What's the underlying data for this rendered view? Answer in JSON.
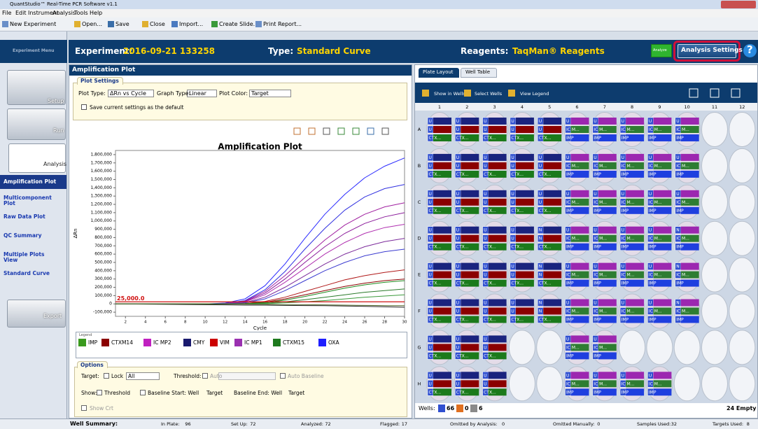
{
  "window": {
    "title": "QuantStudio™ Real-Time PCR Software v1.1"
  },
  "menu": [
    "File",
    "Edit",
    "Instrument",
    "Analysis",
    "Tools",
    "Help"
  ],
  "toolbar": [
    "New Experiment",
    "Open...",
    "Save",
    "Close",
    "Import...",
    "Create Slide...",
    "Print Report..."
  ],
  "nav": {
    "header": "Experiment Menu",
    "steps": [
      "Setup",
      "Run",
      "Analysis"
    ],
    "items": [
      "Amplification Plot",
      "Multicomponent Plot",
      "Raw Data Plot",
      "QC Summary",
      "Multiple Plots View",
      "Standard Curve"
    ],
    "export": "Export"
  },
  "header": {
    "experiment_label": "Experiment:",
    "experiment": "2016-09-21 133258",
    "type_label": "Type:",
    "type": "Standard Curve",
    "reagents_label": "Reagents:",
    "reagents": "TaqMan® Reagents",
    "analyze": "Analyze",
    "settings": "Analysis Settings",
    "help": "?"
  },
  "amp": {
    "panel_title": "Amplification Plot",
    "settings_title": "Plot Settings",
    "plot_type_label": "Plot Type:",
    "plot_type": "ΔRn vs Cycle",
    "graph_type_label": "Graph Type:",
    "graph_type": "Linear",
    "plot_color_label": "Plot Color:",
    "plot_color": "Target",
    "default_check": "Save current settings as the default"
  },
  "chart_data": {
    "type": "line",
    "title": "Amplification Plot",
    "x_label": "Cycle",
    "y_label": "ΔRn",
    "threshold": 25000,
    "threshold_label": "25,000.0",
    "threshold_color": "#d01010",
    "xlim": [
      1,
      30
    ],
    "ylim": [
      -150000,
      1850000
    ],
    "xticks": [
      2,
      4,
      6,
      8,
      10,
      12,
      14,
      16,
      18,
      20,
      22,
      24,
      26,
      28,
      30
    ],
    "yticks": [
      {
        "value": 1800000,
        "label": "1,800,000"
      },
      {
        "value": 1700000,
        "label": "1,700,000"
      },
      {
        "value": 1600000,
        "label": "1,600,000"
      },
      {
        "value": 1500000,
        "label": "1,500,000"
      },
      {
        "value": 1400000,
        "label": "1,400,000"
      },
      {
        "value": 1300000,
        "label": "1,300,000"
      },
      {
        "value": 1200000,
        "label": "1,200,000"
      },
      {
        "value": 1100000,
        "label": "1,100,000"
      },
      {
        "value": 1000000,
        "label": "1,000,000"
      },
      {
        "value": 900000,
        "label": "900,000"
      },
      {
        "value": 800000,
        "label": "800,000"
      },
      {
        "value": 700000,
        "label": "700,000"
      },
      {
        "value": 600000,
        "label": "600,000"
      },
      {
        "value": 500000,
        "label": "500,000"
      },
      {
        "value": 400000,
        "label": "400,000"
      },
      {
        "value": 300000,
        "label": "300,000"
      },
      {
        "value": 200000,
        "label": "200,000"
      },
      {
        "value": 100000,
        "label": "100,000"
      },
      0,
      {
        "value": -100000,
        "label": "-100,000"
      }
    ],
    "x": [
      1,
      10,
      12,
      14,
      16,
      18,
      20,
      22,
      24,
      26,
      28,
      30
    ],
    "series": [
      {
        "color": "#2a2aff",
        "values": [
          0,
          0,
          10000,
          60000,
          220000,
          480000,
          790000,
          1080000,
          1320000,
          1520000,
          1660000,
          1760000
        ]
      },
      {
        "color": "#3030e0",
        "values": [
          0,
          0,
          5000,
          40000,
          170000,
          390000,
          660000,
          910000,
          1130000,
          1290000,
          1390000,
          1440000
        ]
      },
      {
        "color": "#a020a0",
        "values": [
          0,
          0,
          4000,
          35000,
          150000,
          340000,
          560000,
          770000,
          950000,
          1080000,
          1170000,
          1220000
        ]
      },
      {
        "color": "#8a1a9a",
        "values": [
          0,
          0,
          3000,
          30000,
          130000,
          300000,
          500000,
          690000,
          850000,
          970000,
          1050000,
          1100000
        ]
      },
      {
        "color": "#b030b0",
        "values": [
          0,
          0,
          2000,
          25000,
          110000,
          260000,
          430000,
          600000,
          740000,
          850000,
          920000,
          960000
        ]
      },
      {
        "color": "#7b2a9b",
        "values": [
          0,
          0,
          1000,
          15000,
          80000,
          200000,
          340000,
          480000,
          600000,
          690000,
          750000,
          790000
        ]
      },
      {
        "color": "#3b3bd0",
        "values": [
          0,
          0,
          1000,
          12000,
          60000,
          160000,
          280000,
          400000,
          500000,
          580000,
          630000,
          660000
        ]
      },
      {
        "color": "#b01818",
        "values": [
          0,
          0,
          0,
          5000,
          30000,
          80000,
          150000,
          220000,
          290000,
          340000,
          380000,
          410000
        ]
      },
      {
        "color": "#8b0000",
        "values": [
          0,
          0,
          0,
          3000,
          20000,
          60000,
          110000,
          160000,
          210000,
          250000,
          280000,
          300000
        ]
      },
      {
        "color": "#1f8a1f",
        "values": [
          0,
          0,
          0,
          3000,
          15000,
          45000,
          90000,
          140000,
          190000,
          230000,
          260000,
          280000
        ]
      },
      {
        "color": "#2a7a2a",
        "values": [
          0,
          0,
          0,
          1000,
          8000,
          25000,
          50000,
          80000,
          110000,
          140000,
          160000,
          180000
        ]
      },
      {
        "color": "#3c9a3c",
        "values": [
          0,
          0,
          0,
          0,
          4000,
          12000,
          25000,
          40000,
          60000,
          80000,
          95000,
          110000
        ]
      },
      {
        "color": "#202020",
        "values": [
          0,
          -10000,
          -12000,
          -15000,
          -15000,
          -18000,
          -20000,
          -22000,
          -25000,
          -30000,
          -35000,
          -40000
        ]
      },
      {
        "color": "#556b2f",
        "values": [
          0,
          0,
          0,
          -3000,
          -5000,
          -8000,
          -10000,
          -12000,
          -15000,
          -18000,
          -20000,
          -22000
        ]
      }
    ]
  },
  "legend": {
    "title": "Legend",
    "items": [
      {
        "name": "IMP",
        "color": "#3a9a1e"
      },
      {
        "name": "CTXM14",
        "color": "#8b0000"
      },
      {
        "name": "IC MP2",
        "color": "#c020c0"
      },
      {
        "name": "CMY",
        "color": "#1a1a6e"
      },
      {
        "name": "VIM",
        "color": "#cc0000"
      },
      {
        "name": "IC MP1",
        "color": "#9a30b0"
      },
      {
        "name": "CTXM15",
        "color": "#1e7a1e"
      },
      {
        "name": "OXA",
        "color": "#1e1eff"
      }
    ]
  },
  "options": {
    "title": "Options",
    "target_label": "Target:",
    "lock": "Lock",
    "target": "All",
    "threshold_label": "Threshold:",
    "auto": "Auto",
    "auto_baseline": "Auto Baseline",
    "show_label": "Show:",
    "show_threshold": "Threshold",
    "baseline_start": "Baseline Start: Well",
    "start_target": "Target",
    "baseline_end": "Baseline End: Well",
    "end_target": "Target",
    "show_crt": "Show Crt"
  },
  "plate": {
    "tabs": [
      "Plate Layout",
      "Well Table"
    ],
    "tools": [
      "Show in Wells",
      "Select Wells",
      "View Legend"
    ],
    "columns": [
      1,
      2,
      3,
      4,
      5,
      6,
      7,
      8,
      9,
      10,
      11,
      12
    ],
    "rows": [
      "A",
      "B",
      "C",
      "D",
      "E",
      "F",
      "G",
      "H"
    ],
    "wells": [
      [
        [
          "U",
          "U",
          "CTX..."
        ],
        [
          "U",
          "U",
          "CTX..."
        ],
        [
          "U",
          "U",
          "CTX..."
        ],
        [
          "U",
          "U",
          "CTX..."
        ],
        [
          "U",
          "U",
          "CTX..."
        ],
        [
          "U",
          "IC M...",
          "IMP"
        ],
        [
          "U",
          "IC M...",
          "IMP"
        ],
        [
          "U",
          "IC M...",
          "IMP"
        ],
        [
          "U",
          "IC M...",
          "IMP"
        ],
        [
          "U",
          "IC M...",
          "IMP"
        ],
        [],
        []
      ],
      [
        [
          "U",
          "U",
          "CTX..."
        ],
        [
          "U",
          "U",
          "CTX..."
        ],
        [
          "U",
          "U",
          "CTX..."
        ],
        [
          "U",
          "U",
          "CTX..."
        ],
        [
          "U",
          "U",
          "CTX..."
        ],
        [
          "U",
          "IC M...",
          "IMP"
        ],
        [
          "U",
          "IC M...",
          "IMP"
        ],
        [
          "U",
          "IC M...",
          "IMP"
        ],
        [
          "U",
          "IC M...",
          "IMP"
        ],
        [
          "U",
          "IC M...",
          "IMP"
        ],
        [],
        []
      ],
      [
        [
          "U",
          "U",
          "CTX..."
        ],
        [
          "U",
          "U",
          "CTX..."
        ],
        [
          "U",
          "U",
          "CTX..."
        ],
        [
          "U",
          "U",
          "CTX..."
        ],
        [
          "U",
          "U",
          "CTX..."
        ],
        [
          "U",
          "IC M...",
          "IMP"
        ],
        [
          "U",
          "IC M...",
          "IMP"
        ],
        [
          "U",
          "IC M...",
          "IMP"
        ],
        [
          "U",
          "IC M...",
          "IMP"
        ],
        [
          "U",
          "IC M...",
          "IMP"
        ],
        [],
        []
      ],
      [
        [
          "U",
          "U",
          "CTX..."
        ],
        [
          "U",
          "U",
          "CTX..."
        ],
        [
          "U",
          "U",
          "CTX..."
        ],
        [
          "U",
          "U",
          "CTX..."
        ],
        [
          "N",
          "N",
          "CTX..."
        ],
        [
          "U",
          "IC M...",
          "IMP"
        ],
        [
          "U",
          "IC M...",
          "IMP"
        ],
        [
          "U",
          "IC M...",
          "IMP"
        ],
        [
          "U",
          "IC M...",
          "IMP"
        ],
        [
          "N",
          "IC M...",
          "IMP"
        ],
        [],
        []
      ],
      [
        [
          "U",
          "U",
          "CTX..."
        ],
        [
          "U",
          "U",
          "CTX..."
        ],
        [
          "U",
          "U",
          "CTX..."
        ],
        [
          "U",
          "U",
          "CTX..."
        ],
        [
          "N",
          "N",
          "CTX..."
        ],
        [
          "U",
          "IC M...",
          "IMP"
        ],
        [
          "U",
          "IC M...",
          "IMP"
        ],
        [
          "U",
          "IC M...",
          "IMP"
        ],
        [
          "U",
          "IC M...",
          "IMP"
        ],
        [
          "N",
          "IC M...",
          "IMP"
        ],
        [],
        []
      ],
      [
        [
          "U",
          "U",
          "CTX..."
        ],
        [
          "U",
          "U",
          "CTX..."
        ],
        [
          "U",
          "U",
          "CTX..."
        ],
        [
          "U",
          "U",
          "CTX..."
        ],
        [
          "N",
          "N",
          "CTX..."
        ],
        [
          "U",
          "IC M...",
          "IMP"
        ],
        [
          "U",
          "IC M...",
          "IMP"
        ],
        [
          "U",
          "IC M...",
          "IMP"
        ],
        [
          "U",
          "IC M...",
          "IMP"
        ],
        [
          "N",
          "IC M...",
          "IMP"
        ],
        [],
        []
      ],
      [
        [
          "U",
          "U",
          "CTX..."
        ],
        [
          "U",
          "U",
          "CTX..."
        ],
        [
          "U",
          "U",
          "CTX..."
        ],
        [],
        [],
        [
          "U",
          "IC M...",
          "IMP"
        ],
        [
          "U",
          "IC M...",
          "IMP"
        ],
        [],
        [],
        [],
        [],
        []
      ],
      [
        [
          "U",
          "U",
          "CTX..."
        ],
        [
          "U",
          "U",
          "CTX..."
        ],
        [
          "U",
          "U",
          "CTX..."
        ],
        [],
        [],
        [
          "U",
          "IC M...",
          "IMP"
        ],
        [
          "U",
          "IC M...",
          "IMP"
        ],
        [
          "U",
          "IC M...",
          "IMP"
        ],
        [
          "U",
          "IC M...",
          "IMP"
        ],
        [],
        [],
        []
      ]
    ],
    "footer": {
      "wells_label": "Wells:",
      "unknown": 66,
      "standard": 0,
      "ntc": 6,
      "empty": "24 Empty"
    }
  },
  "status": {
    "title": "Well Summary:",
    "items": [
      {
        "label": "In Plate:",
        "value": 96
      },
      {
        "label": "Set Up:",
        "value": 72
      },
      {
        "label": "Analyzed:",
        "value": 72
      },
      {
        "label": "Flagged:",
        "value": 17
      },
      {
        "label": "Omitted by Analysis:",
        "value": 0
      },
      {
        "label": "Omitted Manually:",
        "value": 0
      },
      {
        "label": "Samples Used:",
        "value": 32
      },
      {
        "label": "Targets Used:",
        "value": 8
      }
    ]
  }
}
